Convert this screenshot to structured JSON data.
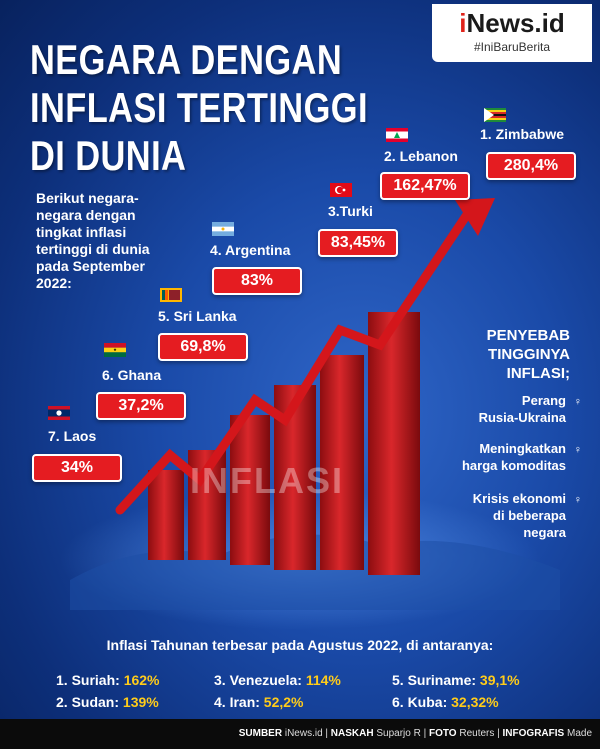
{
  "title": {
    "line1": "NEGARA DENGAN",
    "line2": "INFLASI TERTINGGI",
    "line3": "DI DUNIA"
  },
  "brand": {
    "name_i": "i",
    "name_rest": "News.id",
    "tagline": "#IniBaruBerita"
  },
  "intro": "Berikut negara-negara dengan tingkat inflasi tertinggi di dunia pada September 2022:",
  "countries": [
    {
      "label": "1. Zimbabwe",
      "value": "280,4%"
    },
    {
      "label": "2. Lebanon",
      "value": "162,47%"
    },
    {
      "label": "3.Turki",
      "value": "83,45%"
    },
    {
      "label": "4. Argentina",
      "value": "83%"
    },
    {
      "label": "5. Sri Lanka",
      "value": "69,8%"
    },
    {
      "label": "6. Ghana",
      "value": "37,2%"
    },
    {
      "label": "7. Laos",
      "value": "34%"
    }
  ],
  "causes": {
    "heading_line1": "PENYEBAB",
    "heading_line2": "TINGGINYA",
    "heading_line3": "INFLASI;",
    "items": [
      {
        "line1": "Perang",
        "line2": "Rusia-Ukraina"
      },
      {
        "line1": "Meningkatkan",
        "line2": "harga komoditas"
      },
      {
        "line1": "Krisis ekonomi",
        "line2": "di beberapa",
        "line3": "negara"
      }
    ]
  },
  "watermark": "INFLASI",
  "annual": {
    "heading": "Inflasi Tahunan terbesar pada Agustus 2022, di antaranya:",
    "items": [
      {
        "label": "1. Suriah:",
        "value": "162%"
      },
      {
        "label": "2. Sudan:",
        "value": "139%"
      },
      {
        "label": "3. Venezuela:",
        "value": "114%"
      },
      {
        "label": "4. Iran:",
        "value": "52,2%"
      },
      {
        "label": "5. Suriname:",
        "value": "39,1%"
      },
      {
        "label": "6. Kuba:",
        "value": "32,32%"
      }
    ]
  },
  "footer": {
    "sumber_label": "SUMBER",
    "sumber": "iNews.id",
    "naskah_label": "NASKAH",
    "naskah": "Suparjo R",
    "foto_label": "FOTO",
    "foto": "Reuters",
    "infografis_label": "INFOGRAFIS",
    "infografis": "Made"
  },
  "colors": {
    "accent_red": "#e51c21",
    "highlight_yellow": "#ffcc1a",
    "background_blue": "#1a4aa8"
  }
}
